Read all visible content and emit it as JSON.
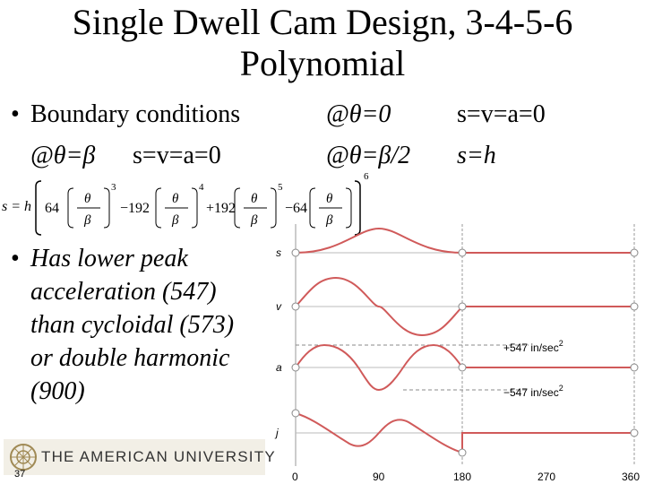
{
  "slide": {
    "title_line1": "Single Dwell Cam Design, 3-4-5-6",
    "title_line2": "Polynomial",
    "slide_number": "37"
  },
  "boundary": {
    "bullet": "•",
    "label": "Boundary conditions",
    "c1_at": "@θ=0",
    "c1_val": "s=v=a=0",
    "c2_at": "@θ=β",
    "c2_val": "s=v=a=0",
    "c3_at": "@θ=β/2",
    "c3_val": "s=h"
  },
  "equation": {
    "lhs": "s = h",
    "coef1": "64",
    "exp1": "3",
    "coef2": "−192",
    "exp2": "4",
    "coef3": "+192",
    "exp3": "5",
    "coef4": "−64",
    "exp4": "6",
    "num": "θ",
    "den": "β"
  },
  "note": {
    "bullet": "•",
    "lines": [
      "Has lower peak",
      "acceleration (547)",
      "than cycloidal (573)",
      "or double harmonic",
      "(900)"
    ]
  },
  "plot": {
    "row_labels": [
      "s",
      "v",
      "a",
      "j"
    ],
    "x_ticks": [
      "0",
      "90",
      "180",
      "270",
      "360"
    ],
    "annot_pos": "+547  in/sec",
    "annot_neg": "−547  in/sec",
    "annot_sup": "2",
    "curve_color": "#d05a5a"
  },
  "footer": {
    "logo": "THE AMERICAN UNIVERSITY"
  }
}
